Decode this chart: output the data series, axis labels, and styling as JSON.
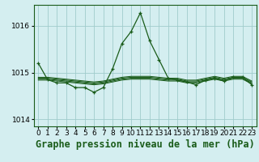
{
  "background_color": "#d4eef0",
  "grid_color": "#a0cccc",
  "line_color": "#1a5c1a",
  "title": "Graphe pression niveau de la mer (hPa)",
  "xlim": [
    -0.5,
    23.5
  ],
  "ylim": [
    1013.85,
    1016.45
  ],
  "yticks": [
    1014,
    1015,
    1016
  ],
  "xticks": [
    0,
    1,
    2,
    3,
    4,
    5,
    6,
    7,
    8,
    9,
    10,
    11,
    12,
    13,
    14,
    15,
    16,
    17,
    18,
    19,
    20,
    21,
    22,
    23
  ],
  "title_fontsize": 8.5,
  "tick_fontsize": 6.5,
  "main_series": [
    1015.2,
    1014.85,
    1014.78,
    1014.78,
    1014.68,
    1014.68,
    1014.58,
    1014.68,
    1015.08,
    1015.62,
    1015.88,
    1016.28,
    1015.68,
    1015.28,
    1014.88,
    1014.84,
    1014.8,
    1014.74,
    1014.84,
    1014.88,
    1014.82,
    1014.9,
    1014.9,
    1014.74
  ],
  "band_lines": [
    [
      1014.84,
      1014.84,
      1014.82,
      1014.8,
      1014.78,
      1014.76,
      1014.74,
      1014.76,
      1014.8,
      1014.84,
      1014.86,
      1014.86,
      1014.86,
      1014.84,
      1014.82,
      1014.82,
      1014.78,
      1014.78,
      1014.82,
      1014.86,
      1014.82,
      1014.86,
      1014.86,
      1014.76
    ],
    [
      1014.86,
      1014.86,
      1014.84,
      1014.82,
      1014.8,
      1014.78,
      1014.76,
      1014.78,
      1014.82,
      1014.86,
      1014.88,
      1014.88,
      1014.88,
      1014.86,
      1014.84,
      1014.84,
      1014.8,
      1014.8,
      1014.84,
      1014.88,
      1014.84,
      1014.88,
      1014.88,
      1014.78
    ],
    [
      1014.88,
      1014.88,
      1014.86,
      1014.84,
      1014.82,
      1014.8,
      1014.78,
      1014.8,
      1014.84,
      1014.88,
      1014.9,
      1014.9,
      1014.9,
      1014.88,
      1014.86,
      1014.86,
      1014.82,
      1014.82,
      1014.86,
      1014.9,
      1014.86,
      1014.9,
      1014.9,
      1014.8
    ],
    [
      1014.9,
      1014.9,
      1014.88,
      1014.86,
      1014.84,
      1014.82,
      1014.8,
      1014.82,
      1014.86,
      1014.9,
      1014.92,
      1014.92,
      1014.92,
      1014.9,
      1014.88,
      1014.88,
      1014.84,
      1014.84,
      1014.88,
      1014.92,
      1014.88,
      1014.92,
      1014.92,
      1014.82
    ]
  ]
}
